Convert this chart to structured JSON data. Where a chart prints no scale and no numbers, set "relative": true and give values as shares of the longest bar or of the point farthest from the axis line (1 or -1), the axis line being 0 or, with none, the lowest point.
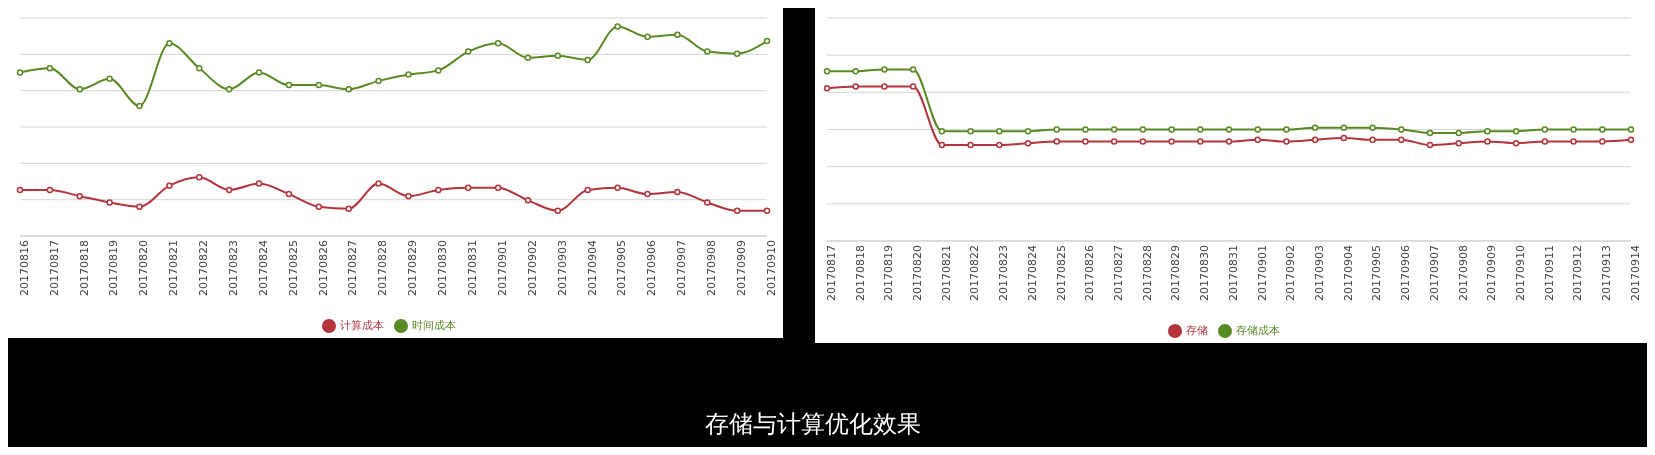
{
  "chart_data": [
    {
      "type": "line",
      "relative": true,
      "categories": [
        "20170816",
        "20170817",
        "20170818",
        "20170819",
        "20170820",
        "20170821",
        "20170822",
        "20170823",
        "20170824",
        "20170825",
        "20170826",
        "20170827",
        "20170828",
        "20170829",
        "20170830",
        "20170831",
        "20170901",
        "20170902",
        "20170903",
        "20170904",
        "20170905",
        "20170906",
        "20170907",
        "20170908",
        "20170909",
        "20170910"
      ],
      "series": [
        {
          "name": "计算成本",
          "color": "#b5343c",
          "values": [
            0.22,
            0.22,
            0.19,
            0.16,
            0.14,
            0.24,
            0.28,
            0.22,
            0.25,
            0.2,
            0.14,
            0.13,
            0.25,
            0.19,
            0.22,
            0.23,
            0.23,
            0.17,
            0.12,
            0.22,
            0.23,
            0.2,
            0.21,
            0.16,
            0.12,
            0.12
          ]
        },
        {
          "name": "时间成本",
          "color": "#5a8a23",
          "values": [
            0.78,
            0.8,
            0.7,
            0.75,
            0.62,
            0.92,
            0.8,
            0.7,
            0.78,
            0.72,
            0.72,
            0.7,
            0.74,
            0.77,
            0.79,
            0.88,
            0.92,
            0.85,
            0.86,
            0.84,
            1,
            0.95,
            0.96,
            0.88,
            0.87,
            0.93
          ]
        }
      ],
      "grid": "y",
      "legend": "bottom",
      "marker": "circle",
      "line_style": "solid"
    },
    {
      "type": "line",
      "relative": true,
      "categories": [
        "20170817",
        "20170818",
        "20170819",
        "20170820",
        "20170821",
        "20170822",
        "20170823",
        "20170824",
        "20170825",
        "20170826",
        "20170827",
        "20170828",
        "20170829",
        "20170830",
        "20170831",
        "20170901",
        "20170902",
        "20170903",
        "20170904",
        "20170905",
        "20170906",
        "20170907",
        "20170908",
        "20170909",
        "20170910",
        "20170911",
        "20170912",
        "20170913",
        "20170914"
      ],
      "series": [
        {
          "name": "存储",
          "color": "#b5343c",
          "values": [
            0.89,
            0.9,
            0.9,
            0.9,
            0.56,
            0.56,
            0.56,
            0.57,
            0.58,
            0.58,
            0.58,
            0.58,
            0.58,
            0.58,
            0.58,
            0.59,
            0.58,
            0.59,
            0.6,
            0.59,
            0.59,
            0.56,
            0.57,
            0.58,
            0.57,
            0.58,
            0.58,
            0.58,
            0.59
          ]
        },
        {
          "name": "存储成本",
          "color": "#5a8a23",
          "values": [
            0.99,
            0.99,
            1,
            1,
            0.64,
            0.64,
            0.64,
            0.64,
            0.65,
            0.65,
            0.65,
            0.65,
            0.65,
            0.65,
            0.65,
            0.65,
            0.65,
            0.66,
            0.66,
            0.66,
            0.65,
            0.63,
            0.63,
            0.64,
            0.64,
            0.65,
            0.65,
            0.65,
            0.65
          ]
        }
      ],
      "grid": "y",
      "legend": "bottom",
      "marker": "circle",
      "line_style": "solid",
      "annotations": [
        "存储与计算优化效果"
      ]
    }
  ]
}
